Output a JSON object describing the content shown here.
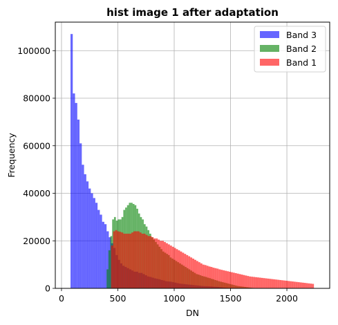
{
  "chart_data": {
    "type": "histogram",
    "title": "hist image 1 after adaptation",
    "xlabel": "DN",
    "ylabel": "Frequency",
    "xlim": [
      -55,
      2380
    ],
    "ylim": [
      0,
      112000
    ],
    "xticks": [
      0,
      500,
      1000,
      1500,
      2000
    ],
    "yticks": [
      0,
      20000,
      40000,
      60000,
      80000,
      100000
    ],
    "grid": true,
    "legend_position": "top-right",
    "series": [
      {
        "name": "Band 3",
        "color": "#0000ff",
        "opacity": 0.6,
        "bin_start": 80,
        "bin_width": 20,
        "values": [
          107000,
          82000,
          78000,
          71000,
          61000,
          52000,
          48000,
          45000,
          42000,
          40000,
          38000,
          36000,
          33000,
          31000,
          28000,
          27000,
          24000,
          21500,
          19000,
          17000,
          14000,
          12000,
          10500,
          9500,
          9000,
          8500,
          8000,
          7500,
          7000,
          7000,
          6500,
          6500,
          6000,
          5500,
          5000,
          4800,
          4500,
          4200,
          4000,
          3800,
          3500,
          3300,
          3000,
          2900,
          2800,
          2600,
          2400,
          2200,
          2000,
          1900,
          1800,
          1700,
          1600,
          1500,
          1400,
          1300,
          1200,
          1100,
          1000,
          950,
          900,
          850,
          800,
          700,
          650,
          600,
          500,
          400,
          300,
          200,
          100,
          50
        ]
      },
      {
        "name": "Band 2",
        "color": "#008000",
        "opacity": 0.6,
        "bin_start": 400,
        "bin_width": 16.5,
        "values": [
          8000,
          16000,
          22000,
          29000,
          30000,
          28500,
          29000,
          29000,
          30000,
          33000,
          34000,
          35000,
          36000,
          36000,
          35500,
          35000,
          33500,
          31500,
          30000,
          29000,
          27000,
          26000,
          24500,
          23000,
          21500,
          20500,
          19500,
          18500,
          17500,
          16500,
          15500,
          15000,
          14500,
          14000,
          13000,
          12500,
          12000,
          11500,
          11000,
          10500,
          10000,
          9500,
          9000,
          8500,
          8000,
          7500,
          7000,
          6500,
          6000,
          5800,
          5500,
          5200,
          5000,
          4800,
          4500,
          4300,
          4000,
          3800,
          3500,
          3300,
          3000,
          2800,
          2600,
          2400,
          2200,
          2000,
          1800,
          1600,
          1400,
          1200,
          1000,
          900,
          800,
          700,
          600,
          500,
          400,
          300,
          200,
          100
        ]
      },
      {
        "name": "Band 1",
        "color": "#ff0000",
        "opacity": 0.6,
        "bin_start": 440,
        "bin_width": 18,
        "values": [
          18000,
          24000,
          24500,
          24000,
          23800,
          23500,
          23000,
          23000,
          23000,
          23000,
          23500,
          24000,
          24000,
          24000,
          23500,
          23000,
          23000,
          22500,
          22000,
          22000,
          21500,
          21000,
          21000,
          20500,
          20000,
          20000,
          19500,
          19000,
          18500,
          18000,
          17500,
          17000,
          16500,
          16000,
          15500,
          15000,
          14500,
          14000,
          13500,
          13000,
          12500,
          12000,
          11500,
          11000,
          10500,
          10000,
          9800,
          9500,
          9200,
          9000,
          8700,
          8500,
          8300,
          8000,
          7800,
          7600,
          7400,
          7200,
          7000,
          6800,
          6600,
          6400,
          6200,
          6000,
          5800,
          5600,
          5400,
          5200,
          5000,
          4900,
          4800,
          4700,
          4600,
          4500,
          4400,
          4300,
          4200,
          4100,
          4000,
          3900,
          3800,
          3700,
          3600,
          3500,
          3400,
          3300,
          3200,
          3100,
          3000,
          2900,
          2800,
          2700,
          2600,
          2500,
          2400,
          2300,
          2200,
          2100,
          2000,
          1900
        ]
      }
    ]
  }
}
